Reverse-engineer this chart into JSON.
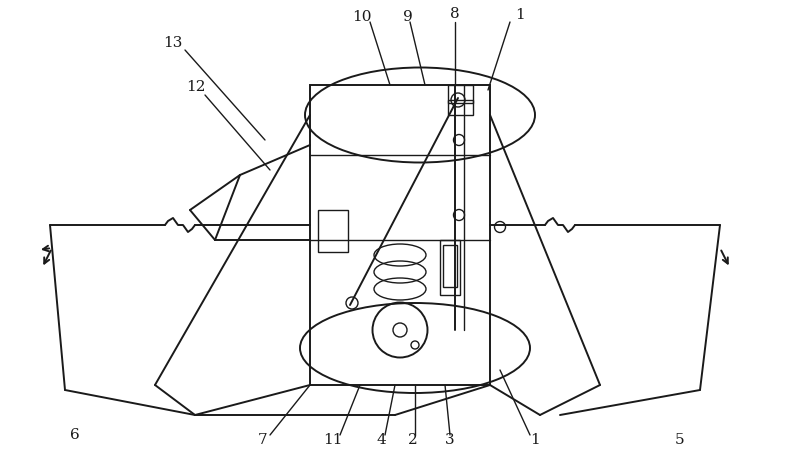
{
  "bg_color": "#ffffff",
  "line_color": "#1a1a1a",
  "lw": 1.4,
  "lw_thin": 1.0,
  "fig_width": 8.0,
  "fig_height": 4.53
}
